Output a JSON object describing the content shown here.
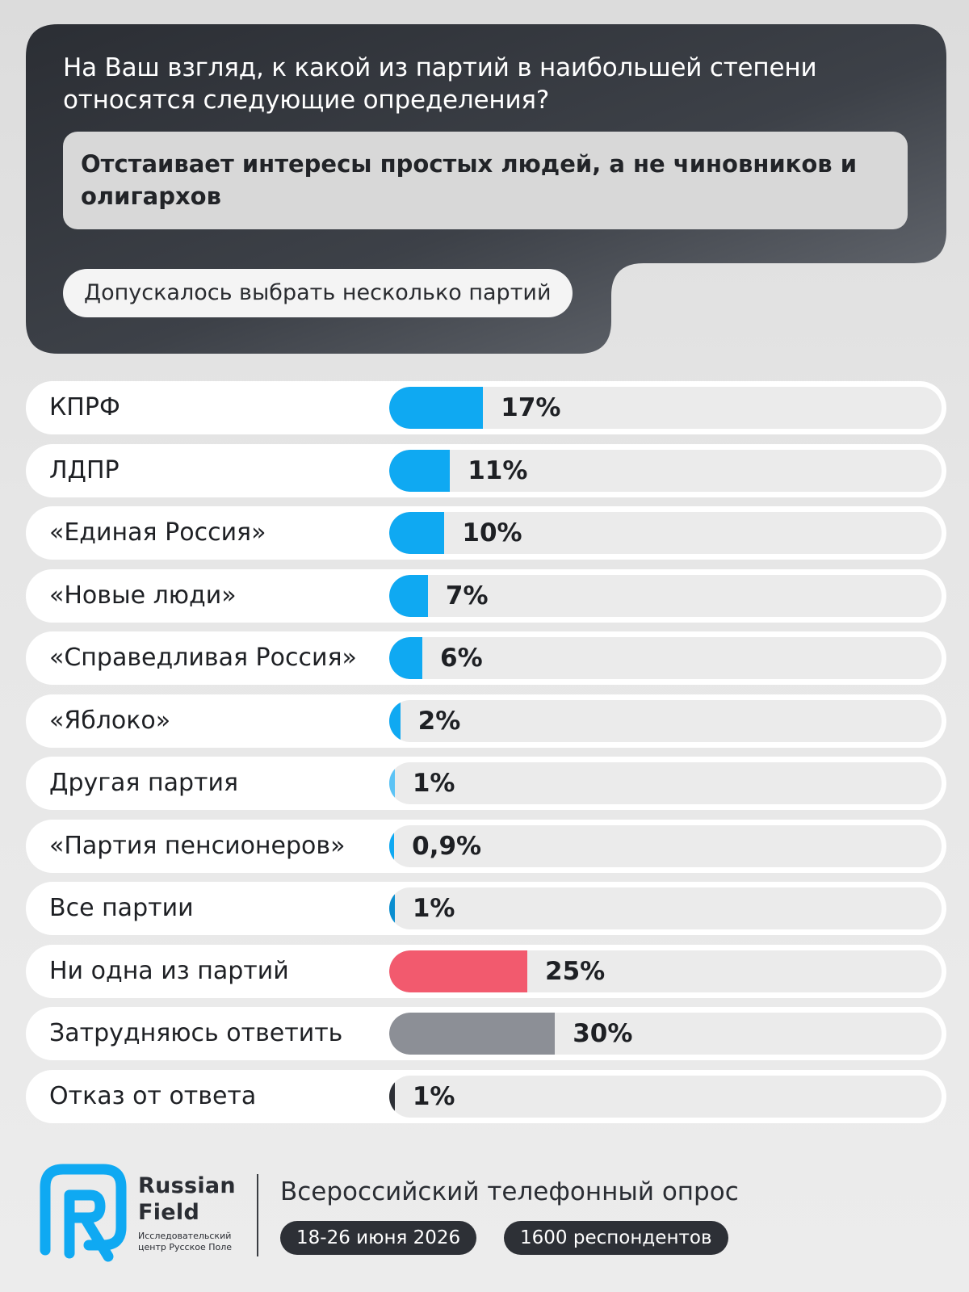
{
  "header": {
    "question": "На Ваш взгляд, к какой из партий в наибольшей степени относятся следующие определения?",
    "definition": "Отстаивает интересы простых людей, а не чиновников и олигархов",
    "note": "Допускалось выбрать несколько партий"
  },
  "chart_data": {
    "type": "bar",
    "orientation": "horizontal",
    "categories": [
      "КПРФ",
      "ЛДПР",
      "«Единая Россия»",
      "«Новые люди»",
      "«Справедливая Россия»",
      "«Яблоко»",
      "Другая партия",
      "«Партия пенсионеров»",
      "Все партии",
      "Ни одна из партий",
      "Затрудняюсь ответить",
      "Отказ от ответа"
    ],
    "values": [
      17,
      11,
      10,
      7,
      6,
      2,
      1,
      0.9,
      1,
      25,
      30,
      1
    ],
    "value_labels": [
      "17%",
      "11%",
      "10%",
      "7%",
      "6%",
      "2%",
      "1%",
      "0,9%",
      "1%",
      "25%",
      "30%",
      "1%"
    ],
    "bar_colors": [
      "#0fa9f2",
      "#0fa9f2",
      "#0fa9f2",
      "#0fa9f2",
      "#0fa9f2",
      "#0fa9f2",
      "#5cc3f5",
      "#0fa9f2",
      "#0a8ed0",
      "#f25a6e",
      "#8c8f96",
      "#2d3036"
    ],
    "xlim": [
      0,
      100
    ],
    "title": "",
    "xlabel": "",
    "ylabel": ""
  },
  "footer": {
    "brand_line1": "Russian",
    "brand_line2": "Field",
    "brand_sub": "Исследовательский центр Русское Поле",
    "survey": "Всероссийский телефонный опрос",
    "dates": "18-26 июня 2026",
    "respondents": "1600 респондентов",
    "logo_color": "#0fa9f2"
  }
}
